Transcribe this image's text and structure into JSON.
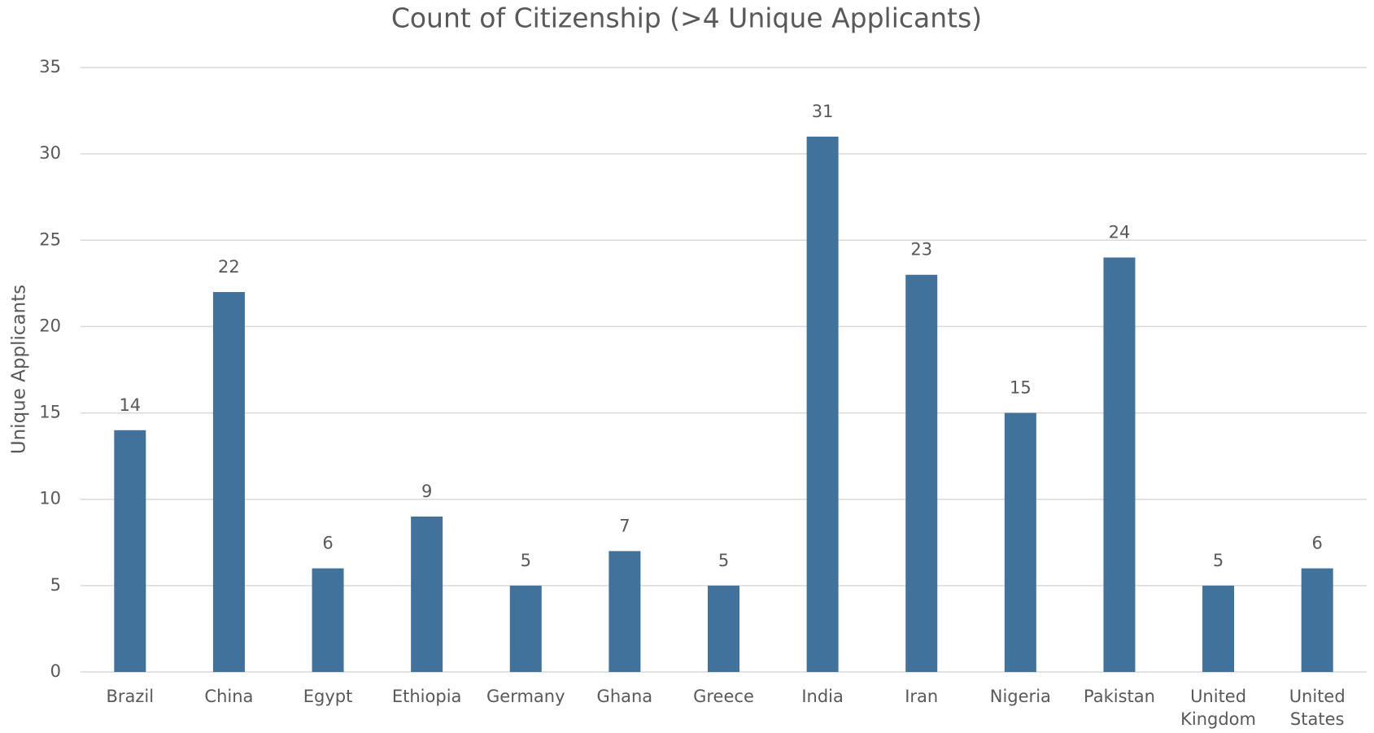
{
  "chart_data": {
    "type": "bar",
    "title": "Count of Citizenship (>4 Unique Applicants)",
    "y_label": "Unique Applicants",
    "categories": [
      "Brazil",
      "China",
      "Egypt",
      "Ethiopia",
      "Germany",
      "Ghana",
      "Greece",
      "India",
      "Iran",
      "Nigeria",
      "Pakistan",
      "United Kingdom",
      "United States"
    ],
    "values": [
      14,
      22,
      6,
      9,
      5,
      7,
      5,
      31,
      23,
      15,
      24,
      5,
      6
    ],
    "color": "#41729c",
    "ylim": [
      0,
      35
    ],
    "yticks": [
      0,
      5,
      10,
      15,
      20,
      25,
      30,
      35
    ],
    "grid": true
  }
}
